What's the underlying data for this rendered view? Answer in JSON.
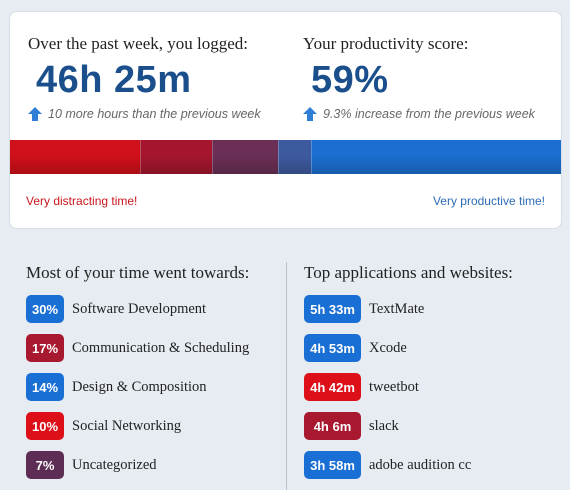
{
  "summary": {
    "logged_label": "Over the past week, you logged:",
    "logged_value": "46h 25m",
    "logged_change": "10 more hours than the previous week",
    "score_label": "Your productivity score:",
    "score_value": "59%",
    "score_change": "9.3% increase from the previous week"
  },
  "productivity_bar": {
    "segments": [
      {
        "share": 0.235,
        "color": "#d0101a"
      },
      {
        "share": 0.13,
        "color": "#a5162e"
      },
      {
        "share": 0.12,
        "color": "#6b2f55"
      },
      {
        "share": 0.06,
        "color": "#3d5a9f"
      },
      {
        "share": 0.455,
        "color": "#1b6fd0"
      }
    ],
    "left_label": "Very distracting time!",
    "right_label": "Very productive time!"
  },
  "categories": {
    "title": "Most of your time went towards:",
    "items": [
      {
        "pct": "30%",
        "label": "Software Development",
        "color": "#1a6fd4"
      },
      {
        "pct": "17%",
        "label": "Communication & Scheduling",
        "color": "#a8182f"
      },
      {
        "pct": "14%",
        "label": "Design & Composition",
        "color": "#1a6fd4"
      },
      {
        "pct": "10%",
        "label": "Social Networking",
        "color": "#dd1019"
      },
      {
        "pct": "7%",
        "label": "Uncategorized",
        "color": "#5d2d55"
      }
    ]
  },
  "applications": {
    "title": "Top applications and websites:",
    "items": [
      {
        "time": "5h 33m",
        "label": "TextMate",
        "color": "#1a6fd4"
      },
      {
        "time": "4h 53m",
        "label": "Xcode",
        "color": "#1a6fd4"
      },
      {
        "time": "4h 42m",
        "label": "tweetbot",
        "color": "#dd1019"
      },
      {
        "time": "4h 6m",
        "label": "slack",
        "color": "#a8182f"
      },
      {
        "time": "3h 58m",
        "label": "adobe audition cc",
        "color": "#1a6fd4"
      }
    ]
  }
}
